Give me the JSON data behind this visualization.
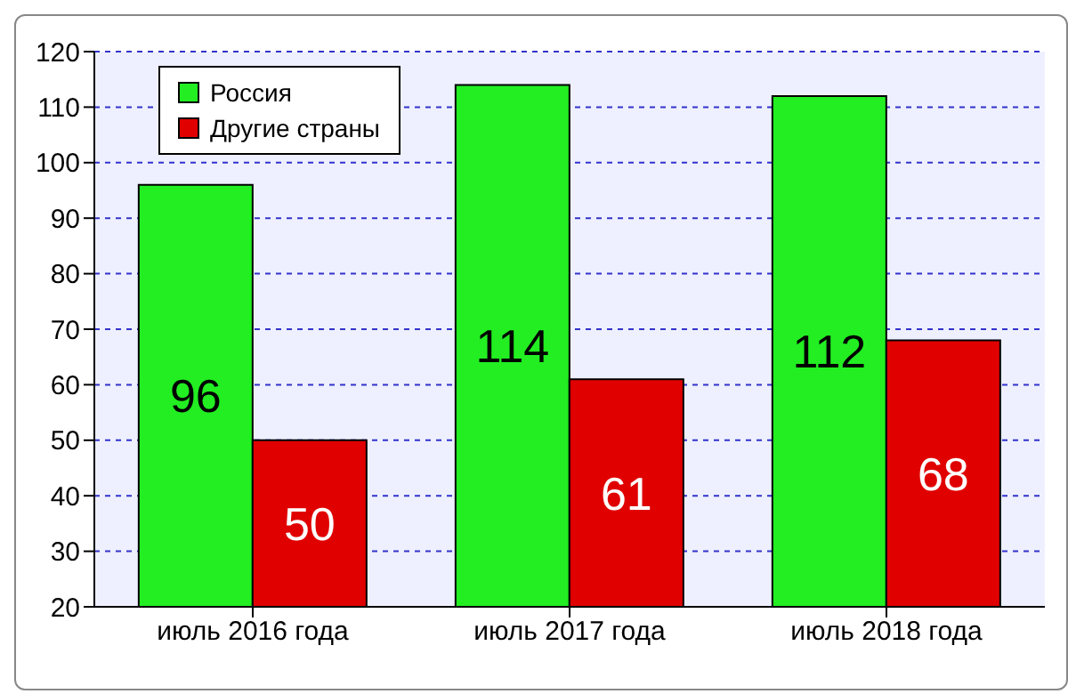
{
  "chart_data": {
    "type": "bar",
    "categories": [
      "июль 2016 года",
      "июль 2017 года",
      "июль 2018 года"
    ],
    "series": [
      {
        "name": "Россия",
        "color": "#22ee22",
        "values": [
          96,
          114,
          112
        ]
      },
      {
        "name": "Другие страны",
        "color": "#e00000",
        "values": [
          50,
          61,
          68
        ]
      }
    ],
    "ylim": [
      20,
      120
    ],
    "yticks": [
      20,
      30,
      40,
      50,
      60,
      70,
      80,
      90,
      100,
      110,
      120
    ],
    "grid": "y",
    "legend": "top left",
    "data_labels": true
  }
}
